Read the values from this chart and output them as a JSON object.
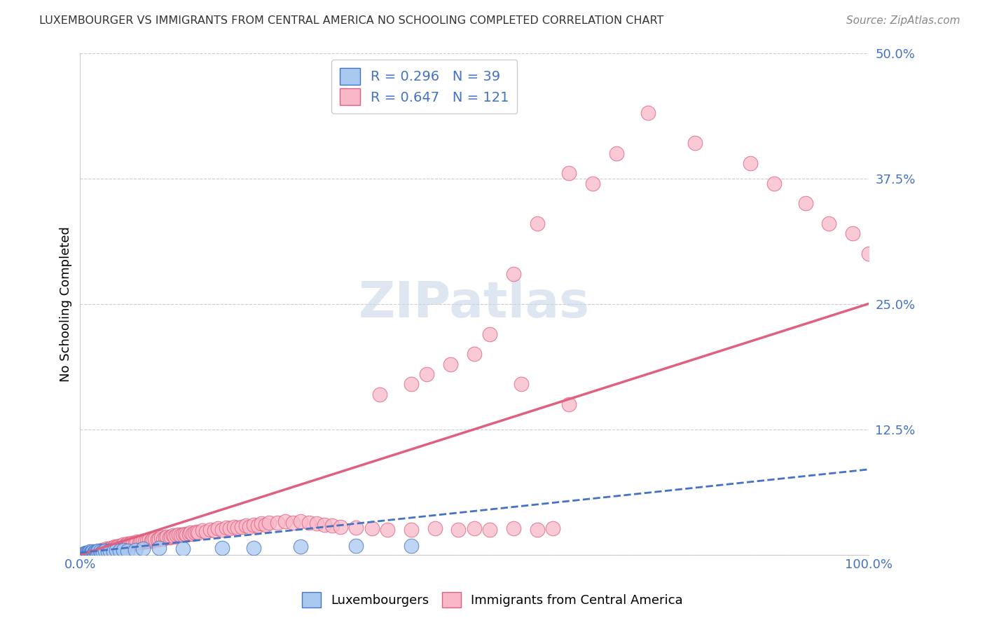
{
  "title": "LUXEMBOURGER VS IMMIGRANTS FROM CENTRAL AMERICA NO SCHOOLING COMPLETED CORRELATION CHART",
  "source_text": "Source: ZipAtlas.com",
  "ylabel": "No Schooling Completed",
  "legend_blue_R": "R = 0.296",
  "legend_blue_N": "N = 39",
  "legend_pink_R": "R = 0.647",
  "legend_pink_N": "N = 121",
  "legend_label_blue": "Luxembourgers",
  "legend_label_pink": "Immigrants from Central America",
  "xlim": [
    0.0,
    1.0
  ],
  "ylim": [
    0.0,
    0.5
  ],
  "yticks": [
    0.0,
    0.125,
    0.25,
    0.375,
    0.5
  ],
  "yticklabels": [
    "",
    "12.5%",
    "25.0%",
    "37.5%",
    "50.0%"
  ],
  "xticks": [
    0.0,
    0.25,
    0.5,
    0.75,
    1.0
  ],
  "xticklabels": [
    "0.0%",
    "",
    "",
    "",
    "100.0%"
  ],
  "blue_fill": "#A8C8F0",
  "blue_edge": "#4472C4",
  "pink_fill": "#F8B8C8",
  "pink_edge": "#E06080",
  "blue_line_color": "#4472C4",
  "pink_line_color": "#E06080",
  "grid_color": "#CCCCCC",
  "watermark_color": "#C8D8E8",
  "tick_label_color": "#4472C4",
  "title_color": "#333333",
  "source_color": "#888888",
  "blue_x": [
    0.005,
    0.006,
    0.007,
    0.008,
    0.009,
    0.01,
    0.011,
    0.012,
    0.013,
    0.014,
    0.015,
    0.016,
    0.017,
    0.018,
    0.019,
    0.02,
    0.021,
    0.022,
    0.023,
    0.025,
    0.027,
    0.029,
    0.032,
    0.035,
    0.038,
    0.042,
    0.046,
    0.05,
    0.055,
    0.06,
    0.07,
    0.08,
    0.1,
    0.13,
    0.18,
    0.22,
    0.28,
    0.35,
    0.42
  ],
  "blue_y": [
    0.001,
    0.001,
    0.002,
    0.001,
    0.002,
    0.001,
    0.002,
    0.003,
    0.002,
    0.001,
    0.002,
    0.003,
    0.002,
    0.001,
    0.003,
    0.002,
    0.003,
    0.002,
    0.004,
    0.003,
    0.002,
    0.003,
    0.004,
    0.003,
    0.004,
    0.003,
    0.005,
    0.004,
    0.005,
    0.004,
    0.005,
    0.006,
    0.007,
    0.006,
    0.007,
    0.007,
    0.008,
    0.009,
    0.009
  ],
  "pink_x": [
    0.02,
    0.022,
    0.025,
    0.027,
    0.028,
    0.03,
    0.032,
    0.033,
    0.035,
    0.037,
    0.038,
    0.04,
    0.041,
    0.042,
    0.044,
    0.045,
    0.047,
    0.048,
    0.05,
    0.052,
    0.053,
    0.055,
    0.057,
    0.058,
    0.06,
    0.062,
    0.063,
    0.065,
    0.067,
    0.07,
    0.072,
    0.075,
    0.077,
    0.08,
    0.082,
    0.085,
    0.088,
    0.09,
    0.092,
    0.095,
    0.098,
    0.1,
    0.103,
    0.105,
    0.108,
    0.11,
    0.113,
    0.115,
    0.118,
    0.12,
    0.122,
    0.125,
    0.128,
    0.13,
    0.133,
    0.135,
    0.138,
    0.14,
    0.143,
    0.145,
    0.148,
    0.15,
    0.155,
    0.16,
    0.165,
    0.17,
    0.175,
    0.18,
    0.185,
    0.19,
    0.195,
    0.2,
    0.205,
    0.21,
    0.215,
    0.22,
    0.225,
    0.23,
    0.235,
    0.24,
    0.25,
    0.26,
    0.27,
    0.28,
    0.29,
    0.3,
    0.31,
    0.32,
    0.33,
    0.35,
    0.37,
    0.39,
    0.42,
    0.45,
    0.48,
    0.5,
    0.52,
    0.55,
    0.58,
    0.6,
    0.42,
    0.47,
    0.52,
    0.55,
    0.58,
    0.62,
    0.65,
    0.68,
    0.72,
    0.78,
    0.85,
    0.88,
    0.92,
    0.95,
    0.98,
    1.0,
    0.38,
    0.44,
    0.5,
    0.56,
    0.62
  ],
  "pink_y": [
    0.002,
    0.003,
    0.004,
    0.004,
    0.005,
    0.005,
    0.004,
    0.006,
    0.005,
    0.006,
    0.006,
    0.007,
    0.006,
    0.007,
    0.008,
    0.007,
    0.008,
    0.008,
    0.009,
    0.008,
    0.009,
    0.01,
    0.009,
    0.01,
    0.011,
    0.01,
    0.011,
    0.012,
    0.011,
    0.012,
    0.013,
    0.012,
    0.013,
    0.014,
    0.013,
    0.014,
    0.015,
    0.014,
    0.015,
    0.016,
    0.015,
    0.016,
    0.017,
    0.016,
    0.017,
    0.018,
    0.017,
    0.018,
    0.019,
    0.018,
    0.019,
    0.02,
    0.019,
    0.02,
    0.021,
    0.02,
    0.021,
    0.022,
    0.021,
    0.022,
    0.023,
    0.022,
    0.024,
    0.023,
    0.025,
    0.024,
    0.026,
    0.025,
    0.027,
    0.026,
    0.028,
    0.027,
    0.028,
    0.029,
    0.028,
    0.03,
    0.029,
    0.031,
    0.03,
    0.032,
    0.032,
    0.033,
    0.032,
    0.033,
    0.032,
    0.031,
    0.03,
    0.029,
    0.028,
    0.027,
    0.026,
    0.025,
    0.025,
    0.026,
    0.025,
    0.026,
    0.025,
    0.026,
    0.025,
    0.026,
    0.17,
    0.19,
    0.22,
    0.28,
    0.33,
    0.38,
    0.37,
    0.4,
    0.44,
    0.41,
    0.39,
    0.37,
    0.35,
    0.33,
    0.32,
    0.3,
    0.16,
    0.18,
    0.2,
    0.17,
    0.15
  ],
  "pink_line_x0": 0.0,
  "pink_line_x1": 1.0,
  "pink_line_y0": 0.0,
  "pink_line_y1": 0.25,
  "blue_line_x0": 0.0,
  "blue_line_x1": 1.0,
  "blue_line_y0": 0.002,
  "blue_line_y1": 0.085
}
